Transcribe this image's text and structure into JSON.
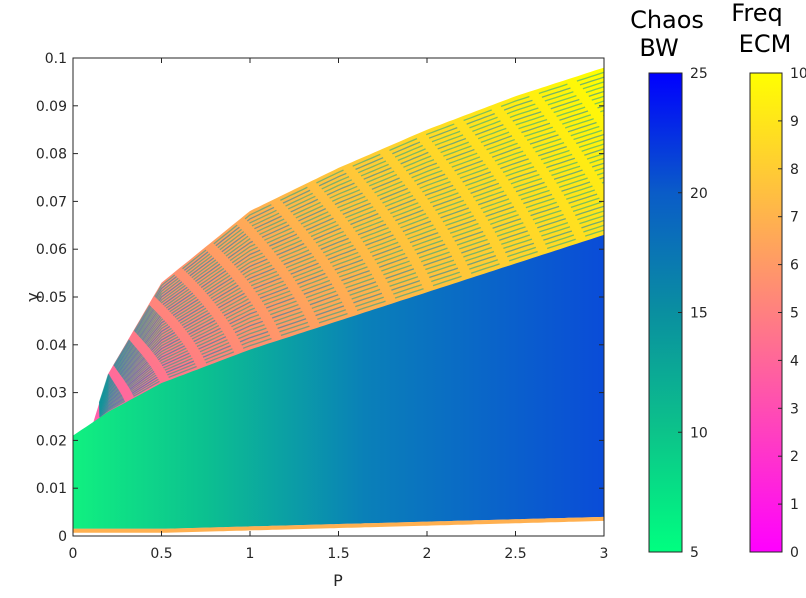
{
  "chart_data": {
    "type": "heatmap",
    "xlabel": "P",
    "ylabel": "γ",
    "xlim": [
      0,
      3
    ],
    "ylim": [
      0,
      0.1
    ],
    "x_ticks": [
      0,
      0.5,
      1,
      1.5,
      2,
      2.5,
      3
    ],
    "x_tick_labels": [
      "0",
      "0.5",
      "1",
      "1.5",
      "2",
      "2.5",
      "3"
    ],
    "y_ticks": [
      0,
      0.01,
      0.02,
      0.03,
      0.04,
      0.05,
      0.06,
      0.07,
      0.08,
      0.09,
      0.1
    ],
    "y_tick_labels": [
      "0",
      "0.01",
      "0.02",
      "0.03",
      "0.04",
      "0.05",
      "0.06",
      "0.07",
      "0.08",
      "0.09",
      "0.1"
    ],
    "grid": false,
    "regions": {
      "chaos_lower_boundary_gamma": {
        "x": [
          0,
          0.5,
          1,
          1.5,
          2,
          2.5,
          3
        ],
        "y": [
          0.0015,
          0.0015,
          0.002,
          0.0025,
          0.003,
          0.0035,
          0.004
        ]
      },
      "chaos_upper_boundary_gamma": {
        "x": [
          0,
          0.2,
          0.5,
          1,
          1.5,
          2,
          2.5,
          3
        ],
        "y": [
          0.021,
          0.026,
          0.032,
          0.039,
          0.045,
          0.051,
          0.057,
          0.063
        ]
      },
      "ecm_upper_boundary_gamma": {
        "x": [
          0.1,
          0.2,
          0.5,
          1,
          1.5,
          2,
          2.5,
          3
        ],
        "y": [
          0.022,
          0.034,
          0.053,
          0.068,
          0.077,
          0.085,
          0.092,
          0.098
        ]
      }
    },
    "colorbars": [
      {
        "title_lines": [
          "Chaos",
          "BW"
        ],
        "range": [
          5,
          25
        ],
        "ticks": [
          5,
          10,
          15,
          20,
          25
        ],
        "tick_labels": [
          "5",
          "10",
          "15",
          "20",
          "25"
        ],
        "colormap": [
          "#00ff80",
          "#0a9a8f",
          "#0a5fc4",
          "#0000ff"
        ]
      },
      {
        "title_lines": [
          "Freq",
          "ECM"
        ],
        "range": [
          0,
          10
        ],
        "ticks": [
          0,
          1,
          2,
          3,
          4,
          5,
          6,
          7,
          8,
          9,
          10
        ],
        "tick_labels": [
          "0",
          "1",
          "2",
          "3",
          "4",
          "5",
          "6",
          "7",
          "8",
          "9",
          "10"
        ],
        "colormap": [
          "#ff00ff",
          "#ff8080",
          "#ffff00"
        ]
      }
    ]
  }
}
